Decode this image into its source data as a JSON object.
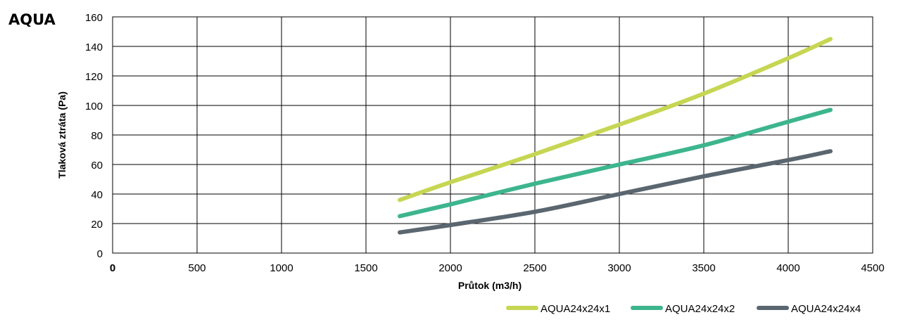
{
  "page_title": "AQUA",
  "chart_data": {
    "type": "line",
    "title": "",
    "xlabel": "Průtok (m3/h)",
    "ylabel": "Tlaková ztráta (Pa)",
    "xlim": [
      0,
      4500
    ],
    "ylim": [
      0,
      160
    ],
    "xticks": [
      0,
      500,
      1000,
      1500,
      2000,
      2500,
      3000,
      3500,
      4000,
      4500
    ],
    "yticks": [
      0,
      20,
      40,
      60,
      80,
      100,
      120,
      140,
      160
    ],
    "grid": true,
    "legend_position": "bottom-right",
    "series": [
      {
        "name": "AQUA24x24x1",
        "color": "#c6d653",
        "x": [
          1700,
          2000,
          2500,
          3000,
          3500,
          4000,
          4250
        ],
        "y": [
          36,
          48,
          67,
          87,
          108,
          132,
          145
        ]
      },
      {
        "name": "AQUA24x24x2",
        "color": "#3db58e",
        "x": [
          1700,
          2000,
          2500,
          3000,
          3500,
          4000,
          4250
        ],
        "y": [
          25,
          33,
          47,
          60,
          73,
          89,
          97
        ]
      },
      {
        "name": "AQUA24x24x4",
        "color": "#5a6670",
        "x": [
          1700,
          2000,
          2500,
          3000,
          3500,
          4000,
          4250
        ],
        "y": [
          14,
          19,
          28,
          40,
          52,
          63,
          69
        ]
      }
    ]
  }
}
